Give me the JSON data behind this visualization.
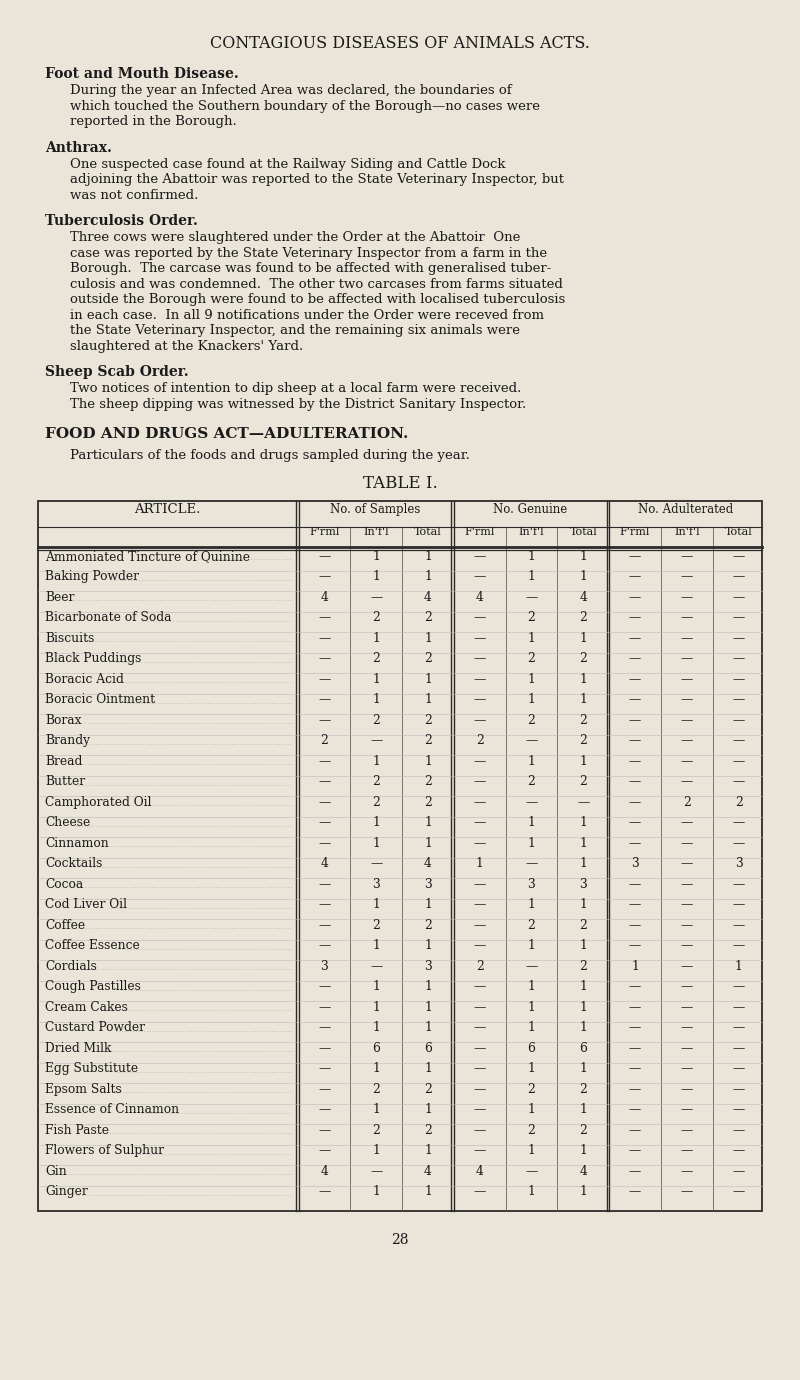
{
  "bg_color": "#EAE5D8",
  "text_color": "#1a1a1a",
  "title": "CONTAGIOUS DISEASES OF ANIMALS ACTS.",
  "sections": [
    {
      "heading": "Foot and Mouth Disease.",
      "body_lines": [
        "During the year an Infected Area was declared, the boundaries of",
        "which touched the Southern boundary of the Borough—no cases were",
        "reported in the Borough."
      ]
    },
    {
      "heading": "Anthrax.",
      "body_lines": [
        "One suspected case found at the Railway Siding and Cattle Dock",
        "adjoining the Abattoir was reported to the State Veterinary Inspector, but",
        "was not confirmed."
      ]
    },
    {
      "heading": "Tuberculosis Order.",
      "body_lines": [
        "Three cows were slaughtered under the Order at the Abattoir  One",
        "case was reported by the State Veterinary Inspector from a farm in the",
        "Borough.  The carcase was found to be affected with generalised tuber-",
        "culosis and was condemned.  The other two carcases from farms situated",
        "outside the Borough were found to be affected with localised tuberculosis",
        "in each case.  In all 9 notifications under the Order were receved from",
        "the State Veterinary Inspector, and the remaining six animals were",
        "slaughtered at the Knackers' Yard."
      ]
    },
    {
      "heading": "Sheep Scab Order.",
      "body_lines": [
        "Two notices of intention to dip sheep at a local farm were received.",
        "The sheep dipping was witnessed by the District Sanitary Inspector."
      ]
    }
  ],
  "food_heading": "FOOD AND DRUGS ACT—ADULTERATION.",
  "food_subheading": "Particulars of the foods and drugs sampled during the year.",
  "table_title": "TABLE I.",
  "col_groups": [
    "No. of Samples",
    "No. Genuine",
    "No. Adulterated"
  ],
  "col_subheaders": [
    "F'rml",
    "In'f'l",
    "Total"
  ],
  "articles": [
    "Ammoniated Tincture of Quinine",
    "Baking Powder",
    "Beer",
    "Bicarbonate of Soda",
    "Biscuits",
    "Black Puddings",
    "Boracic Acid",
    "Boracic Ointment",
    "Borax",
    "Brandy",
    "Bread",
    "Butter",
    "Camphorated Oil",
    "Cheese",
    "Cinnamon",
    "Cocktails",
    "Cocoa",
    "Cod Liver Oil",
    "Coffee",
    "Coffee Essence",
    "Cordials",
    "Cough Pastilles",
    "Cream Cakes",
    "Custard Powder",
    "Dried Milk",
    "Egg Substitute",
    "Epsom Salts",
    "Essence of Cinnamon",
    "Fish Paste",
    "Flowers of Sulphur",
    "Gin",
    "Ginger"
  ],
  "table_data": [
    [
      "—",
      "1",
      "1",
      "—",
      "1",
      "1",
      "—",
      "—",
      "—"
    ],
    [
      "—",
      "1",
      "1",
      "—",
      "1",
      "1",
      "—",
      "—",
      "—"
    ],
    [
      "4",
      "—",
      "4",
      "4",
      "—",
      "4",
      "—",
      "—",
      "—"
    ],
    [
      "—",
      "2",
      "2",
      "—",
      "2",
      "2",
      "—",
      "—",
      "—"
    ],
    [
      "—",
      "1",
      "1",
      "—",
      "1",
      "1",
      "—",
      "—",
      "—"
    ],
    [
      "—",
      "2",
      "2",
      "—",
      "2",
      "2",
      "—",
      "—",
      "—"
    ],
    [
      "—",
      "1",
      "1",
      "—",
      "1",
      "1",
      "—",
      "—",
      "—"
    ],
    [
      "—",
      "1",
      "1",
      "—",
      "1",
      "1",
      "—",
      "—",
      "—"
    ],
    [
      "—",
      "2",
      "2",
      "—",
      "2",
      "2",
      "—",
      "—",
      "—"
    ],
    [
      "2",
      "—",
      "2",
      "2",
      "—",
      "2",
      "—",
      "—",
      "—"
    ],
    [
      "—",
      "1",
      "1",
      "—",
      "1",
      "1",
      "—",
      "—",
      "—"
    ],
    [
      "—",
      "2",
      "2",
      "—",
      "2",
      "2",
      "—",
      "—",
      "—"
    ],
    [
      "—",
      "2",
      "2",
      "—",
      "—",
      "—",
      "—",
      "2",
      "2"
    ],
    [
      "—",
      "1",
      "1",
      "—",
      "1",
      "1",
      "—",
      "—",
      "—"
    ],
    [
      "—",
      "1",
      "1",
      "—",
      "1",
      "1",
      "—",
      "—",
      "—"
    ],
    [
      "4",
      "—",
      "4",
      "1",
      "—",
      "1",
      "3",
      "—",
      "3"
    ],
    [
      "—",
      "3",
      "3",
      "—",
      "3",
      "3",
      "—",
      "—",
      "—"
    ],
    [
      "—",
      "1",
      "1",
      "—",
      "1",
      "1",
      "—",
      "—",
      "—"
    ],
    [
      "—",
      "2",
      "2",
      "—",
      "2",
      "2",
      "—",
      "—",
      "—"
    ],
    [
      "—",
      "1",
      "1",
      "—",
      "1",
      "1",
      "—",
      "—",
      "—"
    ],
    [
      "3",
      "—",
      "3",
      "2",
      "—",
      "2",
      "1",
      "—",
      "1"
    ],
    [
      "—",
      "1",
      "1",
      "—",
      "1",
      "1",
      "—",
      "—",
      "—"
    ],
    [
      "—",
      "1",
      "1",
      "—",
      "1",
      "1",
      "—",
      "—",
      "—"
    ],
    [
      "—",
      "1",
      "1",
      "—",
      "1",
      "1",
      "—",
      "—",
      "—"
    ],
    [
      "—",
      "6",
      "6",
      "—",
      "6",
      "6",
      "—",
      "—",
      "—"
    ],
    [
      "—",
      "1",
      "1",
      "—",
      "1",
      "1",
      "—",
      "—",
      "—"
    ],
    [
      "—",
      "2",
      "2",
      "—",
      "2",
      "2",
      "—",
      "—",
      "—"
    ],
    [
      "—",
      "1",
      "1",
      "—",
      "1",
      "1",
      "—",
      "—",
      "—"
    ],
    [
      "—",
      "2",
      "2",
      "—",
      "2",
      "2",
      "—",
      "—",
      "—"
    ],
    [
      "—",
      "1",
      "1",
      "—",
      "1",
      "1",
      "—",
      "—",
      "—"
    ],
    [
      "4",
      "—",
      "4",
      "4",
      "—",
      "4",
      "—",
      "—",
      "—"
    ],
    [
      "—",
      "1",
      "1",
      "—",
      "1",
      "1",
      "—",
      "—",
      "—"
    ]
  ],
  "page_number": "28"
}
